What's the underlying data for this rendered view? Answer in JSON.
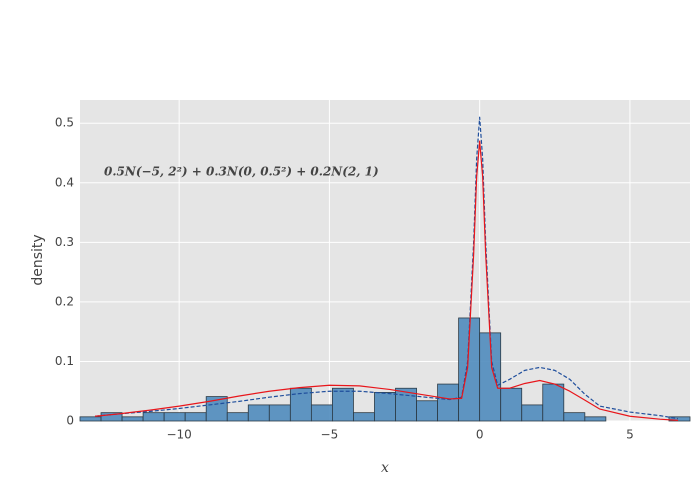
{
  "chart_data": {
    "type": "histogram",
    "annotation": "0.5N(−5, 2²) + 0.3N(0, 0.5²) + 0.2N(2, 1)",
    "xlabel": "x",
    "ylabel": "density",
    "bins": [
      -13.3,
      -12.6,
      -11.9,
      -11.2,
      -10.5,
      -9.8,
      -9.1,
      -8.4,
      -7.7,
      -7.0,
      -6.3,
      -5.6,
      -4.9,
      -4.2,
      -3.5,
      -2.8,
      -2.1,
      -1.4,
      -0.7,
      0,
      0.7,
      1.4,
      2.1,
      2.8,
      3.5,
      4.2,
      4.9,
      5.6,
      6.3,
      7.0
    ],
    "values": [
      0.007,
      0.014,
      0.007,
      0.014,
      0.014,
      0.014,
      0.041,
      0.014,
      0.027,
      0.027,
      0.055,
      0.027,
      0.055,
      0.014,
      0.048,
      0.055,
      0.034,
      0.062,
      0.173,
      0.148,
      0.055,
      0.027,
      0.062,
      0.014,
      0.007,
      0,
      0,
      0,
      0.007
    ],
    "color": "#4f8bbd",
    "series": [
      {
        "type": "line",
        "color": "#1f4e9c",
        "dash": true,
        "x": [
          -12.8,
          -12,
          -11,
          -10,
          -9,
          -8,
          -7,
          -6,
          -5,
          -4,
          -3,
          -2,
          -1,
          -0.6,
          -0.4,
          -0.2,
          -0.1,
          0,
          0.1,
          0.2,
          0.4,
          0.6,
          1,
          1.5,
          2,
          2.5,
          3,
          3.5,
          4,
          5,
          6,
          6.6
        ],
        "values": [
          0.008,
          0.012,
          0.016,
          0.021,
          0.027,
          0.033,
          0.04,
          0.046,
          0.05,
          0.05,
          0.046,
          0.041,
          0.036,
          0.04,
          0.1,
          0.3,
          0.44,
          0.51,
          0.44,
          0.3,
          0.1,
          0.06,
          0.07,
          0.085,
          0.09,
          0.085,
          0.07,
          0.045,
          0.025,
          0.015,
          0.009,
          0.004
        ]
      },
      {
        "type": "line",
        "color": "#e8161b",
        "dash": false,
        "x": [
          -12.8,
          -12,
          -11,
          -10,
          -9,
          -8,
          -7,
          -6,
          -5,
          -4,
          -3,
          -2,
          -1,
          -0.6,
          -0.4,
          -0.2,
          -0.1,
          0,
          0.1,
          0.2,
          0.4,
          0.6,
          1,
          1.5,
          2,
          2.5,
          3,
          3.5,
          4,
          5,
          6,
          6.6
        ],
        "values": [
          0.008,
          0.012,
          0.018,
          0.025,
          0.033,
          0.042,
          0.05,
          0.056,
          0.06,
          0.059,
          0.053,
          0.045,
          0.037,
          0.038,
          0.09,
          0.28,
          0.41,
          0.47,
          0.41,
          0.28,
          0.09,
          0.055,
          0.055,
          0.063,
          0.068,
          0.062,
          0.05,
          0.035,
          0.02,
          0.008,
          0.003,
          0.001
        ]
      }
    ],
    "xlim": [
      -13.3,
      7.0
    ],
    "ylim": [
      0,
      0.539
    ],
    "xticks": [
      {
        "value": -10,
        "label": "−10"
      },
      {
        "value": -5,
        "label": "−5"
      },
      0,
      5
    ],
    "yticks": [
      0,
      0.1,
      0.2,
      0.3,
      0.4,
      0.5
    ],
    "grid": true
  }
}
